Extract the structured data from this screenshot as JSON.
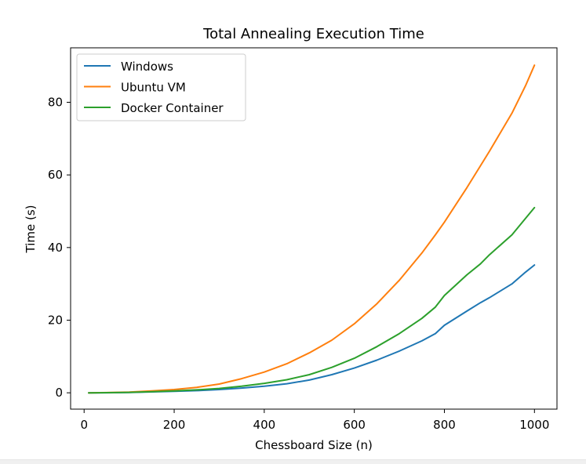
{
  "chart_data": {
    "type": "line",
    "title": "Total Annealing Execution Time",
    "xlabel": "Chessboard Size (n)",
    "ylabel": "Time (s)",
    "xlim": [
      -30,
      1050
    ],
    "ylim": [
      -4.5,
      95
    ],
    "xticks": [
      0,
      200,
      400,
      600,
      800,
      1000
    ],
    "yticks": [
      0,
      20,
      40,
      60,
      80
    ],
    "grid": false,
    "legend_position": "top-left",
    "x": [
      10,
      50,
      100,
      150,
      200,
      250,
      300,
      350,
      400,
      450,
      500,
      550,
      600,
      650,
      700,
      750,
      780,
      800,
      850,
      880,
      900,
      950,
      980,
      1000
    ],
    "series": [
      {
        "name": "Windows",
        "color": "#1f77b4",
        "values": [
          0.0,
          0.02,
          0.1,
          0.25,
          0.4,
          0.6,
          0.9,
          1.3,
          1.8,
          2.5,
          3.5,
          5.0,
          6.8,
          9.0,
          11.5,
          14.3,
          16.3,
          18.6,
          22.5,
          24.8,
          26.2,
          30.0,
          33.2,
          35.2
        ]
      },
      {
        "name": "Ubuntu VM",
        "color": "#ff7f0e",
        "values": [
          0.0,
          0.05,
          0.2,
          0.5,
          0.9,
          1.5,
          2.4,
          3.9,
          5.7,
          8.0,
          11.0,
          14.5,
          19.0,
          24.5,
          31.0,
          38.5,
          43.5,
          47.0,
          56.5,
          62.5,
          66.5,
          77.0,
          84.5,
          90.2
        ]
      },
      {
        "name": "Docker Container",
        "color": "#2ca02c",
        "values": [
          0.0,
          0.03,
          0.12,
          0.3,
          0.5,
          0.8,
          1.2,
          1.8,
          2.6,
          3.6,
          5.0,
          7.0,
          9.5,
          12.7,
          16.3,
          20.5,
          23.6,
          26.8,
          32.5,
          35.5,
          38.0,
          43.5,
          48.0,
          51.0
        ]
      }
    ]
  }
}
